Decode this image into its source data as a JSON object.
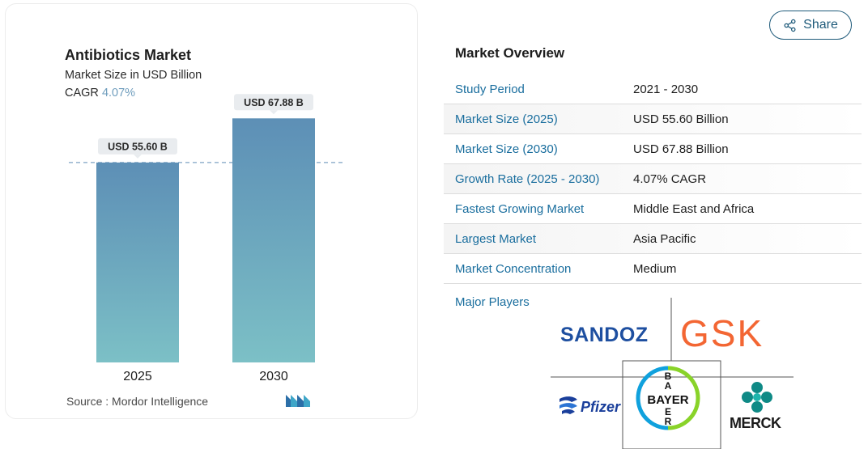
{
  "chart": {
    "title": "Antibiotics Market",
    "subtitle": "Market Size in USD Billion",
    "cagr_label": "CAGR",
    "cagr_value": "4.07%",
    "source": "Source :  Mordor Intelligence"
  },
  "chart_data": {
    "type": "bar",
    "title": "Antibiotics Market",
    "subtitle": "Market Size in USD Billion",
    "categories": [
      "2025",
      "2030"
    ],
    "values": [
      55.6,
      67.88
    ],
    "data_labels": [
      "USD 55.60 B",
      "USD 67.88 B"
    ],
    "ylim": [
      0,
      72
    ],
    "reference_line": 55.6,
    "grid": false,
    "bar_gradient": [
      "#5d8fb6",
      "#7cc0c6"
    ]
  },
  "share": {
    "label": "Share"
  },
  "overview": {
    "title": "Market Overview",
    "rows": [
      {
        "key": "Study Period",
        "value": "2021 - 2030"
      },
      {
        "key": "Market Size (2025)",
        "value": "USD 55.60 Billion"
      },
      {
        "key": "Market Size (2030)",
        "value": "USD 67.88 Billion"
      },
      {
        "key": "Growth Rate (2025 - 2030)",
        "value": "4.07% CAGR"
      },
      {
        "key": "Fastest Growing Market",
        "value": "Middle East and Africa"
      },
      {
        "key": "Largest Market",
        "value": "Asia Pacific"
      },
      {
        "key": "Market Concentration",
        "value": "Medium"
      }
    ]
  },
  "major_players": {
    "label": "Major Players",
    "logos": {
      "sandoz": "SANDOZ",
      "gsk": "GSK",
      "pfizer": "Pfizer",
      "bayer": "BAYER",
      "merck": "MERCK"
    }
  },
  "colors": {
    "accent": "#1a6e9e",
    "share_border": "#1e5a7a",
    "gsk_orange": "#f36633",
    "bayer_green": "#89d329",
    "bayer_blue": "#10a1dd",
    "merck_teal": "#0f8a86"
  }
}
